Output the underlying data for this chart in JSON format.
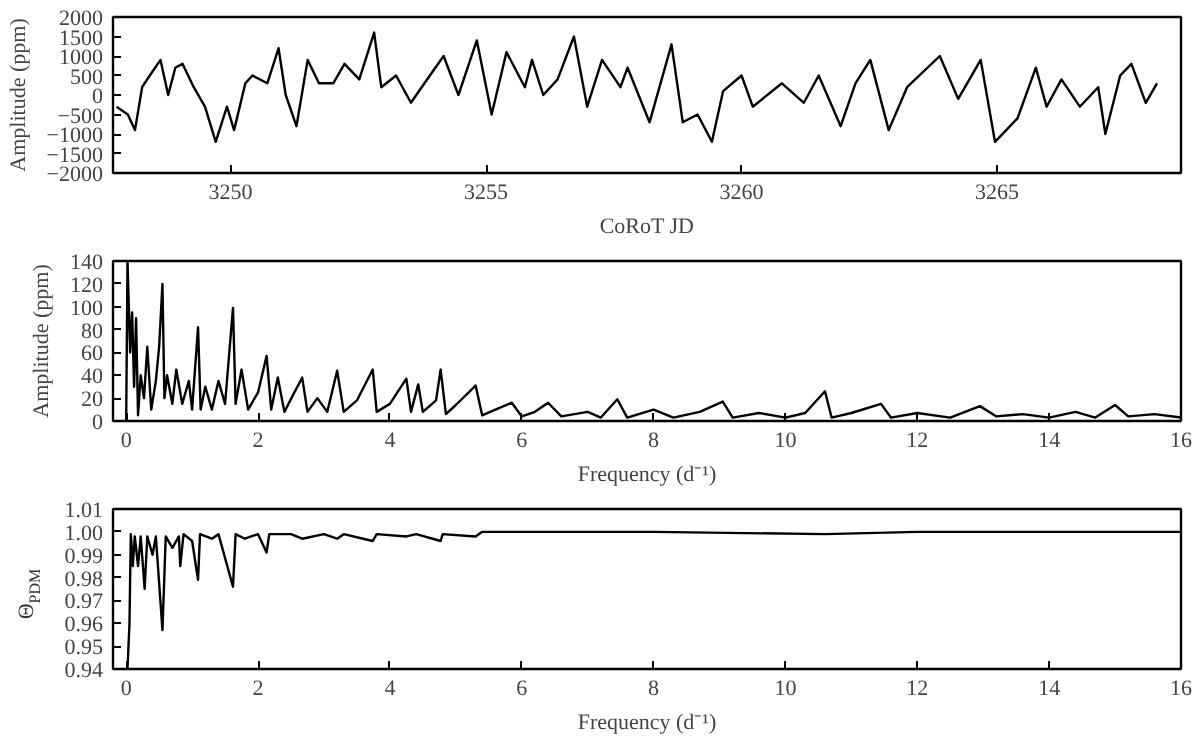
{
  "chart_data": [
    {
      "type": "line",
      "xlabel": "CoRoT JD",
      "ylabel": "Amplitude (ppm)",
      "xlim": [
        3247.7,
        3268.6
      ],
      "ylim": [
        -2000,
        2000
      ],
      "xticks": [
        3250,
        3255,
        3260,
        3265
      ],
      "yticks": [
        -2000,
        -1500,
        -1000,
        -500,
        0,
        500,
        1000,
        1500,
        2000
      ],
      "grid": false,
      "series": [
        {
          "color": "#000000",
          "x": [
            3247.77,
            3247.99,
            3248.13,
            3248.27,
            3248.42,
            3248.63,
            3248.78,
            3248.92,
            3249.06,
            3249.28,
            3249.5,
            3249.71,
            3249.93,
            3250.07,
            3250.29,
            3250.43,
            3250.72,
            3250.94,
            3251.08,
            3251.29,
            3251.51,
            3251.73,
            3252.01,
            3252.23,
            3252.52,
            3252.81,
            3252.95,
            3253.24,
            3253.53,
            3253.74,
            3254.17,
            3254.46,
            3254.82,
            3255.11,
            3255.4,
            3255.76,
            3255.9,
            3256.12,
            3256.4,
            3256.72,
            3256.98,
            3257.27,
            3257.63,
            3257.77,
            3258.2,
            3258.63,
            3258.85,
            3259.14,
            3259.42,
            3259.64,
            3260.0,
            3260.22,
            3260.79,
            3261.22,
            3261.51,
            3261.94,
            3262.23,
            3262.52,
            3262.88,
            3263.24,
            3263.88,
            3264.24,
            3264.68,
            3264.96,
            3265.4,
            3265.76,
            3265.97,
            3266.26,
            3266.62,
            3266.98,
            3267.12,
            3267.41,
            3267.63,
            3267.91,
            3268.13
          ],
          "values": [
            -300,
            -500,
            -900,
            200,
            500,
            900,
            0,
            700,
            800,
            200,
            -300,
            -1200,
            -300,
            -900,
            300,
            500,
            300,
            1200,
            0,
            -800,
            900,
            300,
            300,
            800,
            400,
            1600,
            200,
            500,
            -200,
            200,
            1000,
            0,
            1400,
            -500,
            1100,
            200,
            900,
            0,
            400,
            1500,
            -300,
            900,
            200,
            700,
            -700,
            1300,
            -700,
            -500,
            -1200,
            100,
            500,
            -300,
            300,
            -200,
            500,
            -800,
            300,
            900,
            -900,
            200,
            1000,
            -100,
            900,
            -1200,
            -600,
            700,
            -300,
            400,
            -300,
            200,
            -1000,
            500,
            800,
            -200,
            300
          ]
        }
      ]
    },
    {
      "type": "line",
      "xlabel": "Frequency (d⁻¹)",
      "ylabel": "Amplitude (ppm)",
      "xlim": [
        -0.2,
        16
      ],
      "ylim": [
        0,
        140
      ],
      "xticks": [
        0,
        2,
        4,
        6,
        8,
        10,
        12,
        14,
        16
      ],
      "yticks": [
        0,
        20,
        40,
        60,
        80,
        100,
        120,
        140
      ],
      "grid": false,
      "series": [
        {
          "color": "#000000",
          "x": [
            0,
            0.02,
            0.06,
            0.09,
            0.12,
            0.15,
            0.18,
            0.22,
            0.27,
            0.32,
            0.38,
            0.45,
            0.5,
            0.55,
            0.58,
            0.62,
            0.7,
            0.76,
            0.85,
            0.95,
            1.0,
            1.09,
            1.13,
            1.2,
            1.3,
            1.4,
            1.5,
            1.62,
            1.66,
            1.75,
            1.85,
            2.0,
            2.13,
            2.2,
            2.3,
            2.4,
            2.55,
            2.67,
            2.75,
            2.9,
            3.05,
            3.2,
            3.3,
            3.5,
            3.74,
            3.8,
            4.0,
            4.25,
            4.32,
            4.43,
            4.5,
            4.7,
            4.77,
            4.85,
            5.0,
            5.3,
            5.4,
            5.6,
            5.85,
            6.0,
            6.2,
            6.4,
            6.6,
            7.0,
            7.2,
            7.45,
            7.6,
            8.0,
            8.3,
            8.7,
            9.05,
            9.2,
            9.6,
            10.0,
            10.3,
            10.6,
            10.7,
            11.0,
            11.45,
            11.6,
            12.0,
            12.5,
            12.95,
            13.2,
            13.6,
            14.0,
            14.4,
            14.7,
            15.0,
            15.2,
            15.6,
            16.0
          ],
          "values": [
            0,
            140,
            60,
            95,
            30,
            90,
            5,
            40,
            20,
            65,
            10,
            35,
            65,
            120,
            20,
            40,
            15,
            45,
            15,
            35,
            10,
            82,
            10,
            30,
            10,
            35,
            15,
            99,
            15,
            45,
            10,
            25,
            57,
            10,
            38,
            8,
            25,
            38,
            8,
            20,
            8,
            44,
            8,
            18,
            45,
            8,
            15,
            37,
            8,
            32,
            8,
            18,
            45,
            6,
            14,
            31,
            5,
            10,
            16,
            4,
            8,
            16,
            4,
            8,
            3,
            19,
            3,
            10,
            3,
            8,
            17,
            3,
            7,
            3,
            7,
            26,
            3,
            7,
            15,
            3,
            7,
            3,
            13,
            4,
            6,
            3,
            8,
            3,
            14,
            4,
            6,
            3
          ]
        }
      ]
    },
    {
      "type": "line",
      "xlabel": "Frequency (d⁻¹)",
      "ylabel": "Θ$_{PDM}$",
      "xlim": [
        -0.2,
        16
      ],
      "ylim": [
        0.94,
        1.01
      ],
      "xticks": [
        0,
        2,
        4,
        6,
        8,
        10,
        12,
        14,
        16
      ],
      "yticks": [
        0.94,
        0.95,
        0.96,
        0.97,
        0.98,
        0.99,
        {
          "value": 1.0,
          "label": "1.00"
        },
        1.01
      ],
      "grid": false,
      "series": [
        {
          "color": "#000000",
          "x": [
            0.02,
            0.05,
            0.07,
            0.1,
            0.13,
            0.18,
            0.22,
            0.28,
            0.32,
            0.4,
            0.45,
            0.55,
            0.6,
            0.7,
            0.8,
            0.82,
            0.87,
            1.0,
            1.09,
            1.12,
            1.3,
            1.4,
            1.62,
            1.66,
            1.8,
            2.0,
            2.13,
            2.17,
            2.5,
            2.67,
            3.0,
            3.2,
            3.3,
            3.74,
            3.8,
            4.25,
            4.4,
            4.77,
            4.8,
            5.3,
            5.4,
            6.0,
            8.0,
            10.6,
            12.0,
            16.0
          ],
          "values": [
            0.94,
            0.96,
            0.999,
            0.985,
            0.998,
            0.985,
            0.998,
            0.975,
            0.998,
            0.99,
            0.998,
            0.957,
            0.998,
            0.993,
            0.998,
            0.985,
            0.999,
            0.996,
            0.979,
            0.999,
            0.997,
            0.999,
            0.976,
            0.999,
            0.997,
            0.999,
            0.991,
            0.999,
            0.999,
            0.997,
            0.999,
            0.997,
            0.999,
            0.996,
            0.999,
            0.998,
            0.999,
            0.996,
            0.999,
            0.998,
            1.0,
            1.0,
            1.0,
            0.999,
            1.0,
            1.0
          ]
        }
      ]
    }
  ]
}
